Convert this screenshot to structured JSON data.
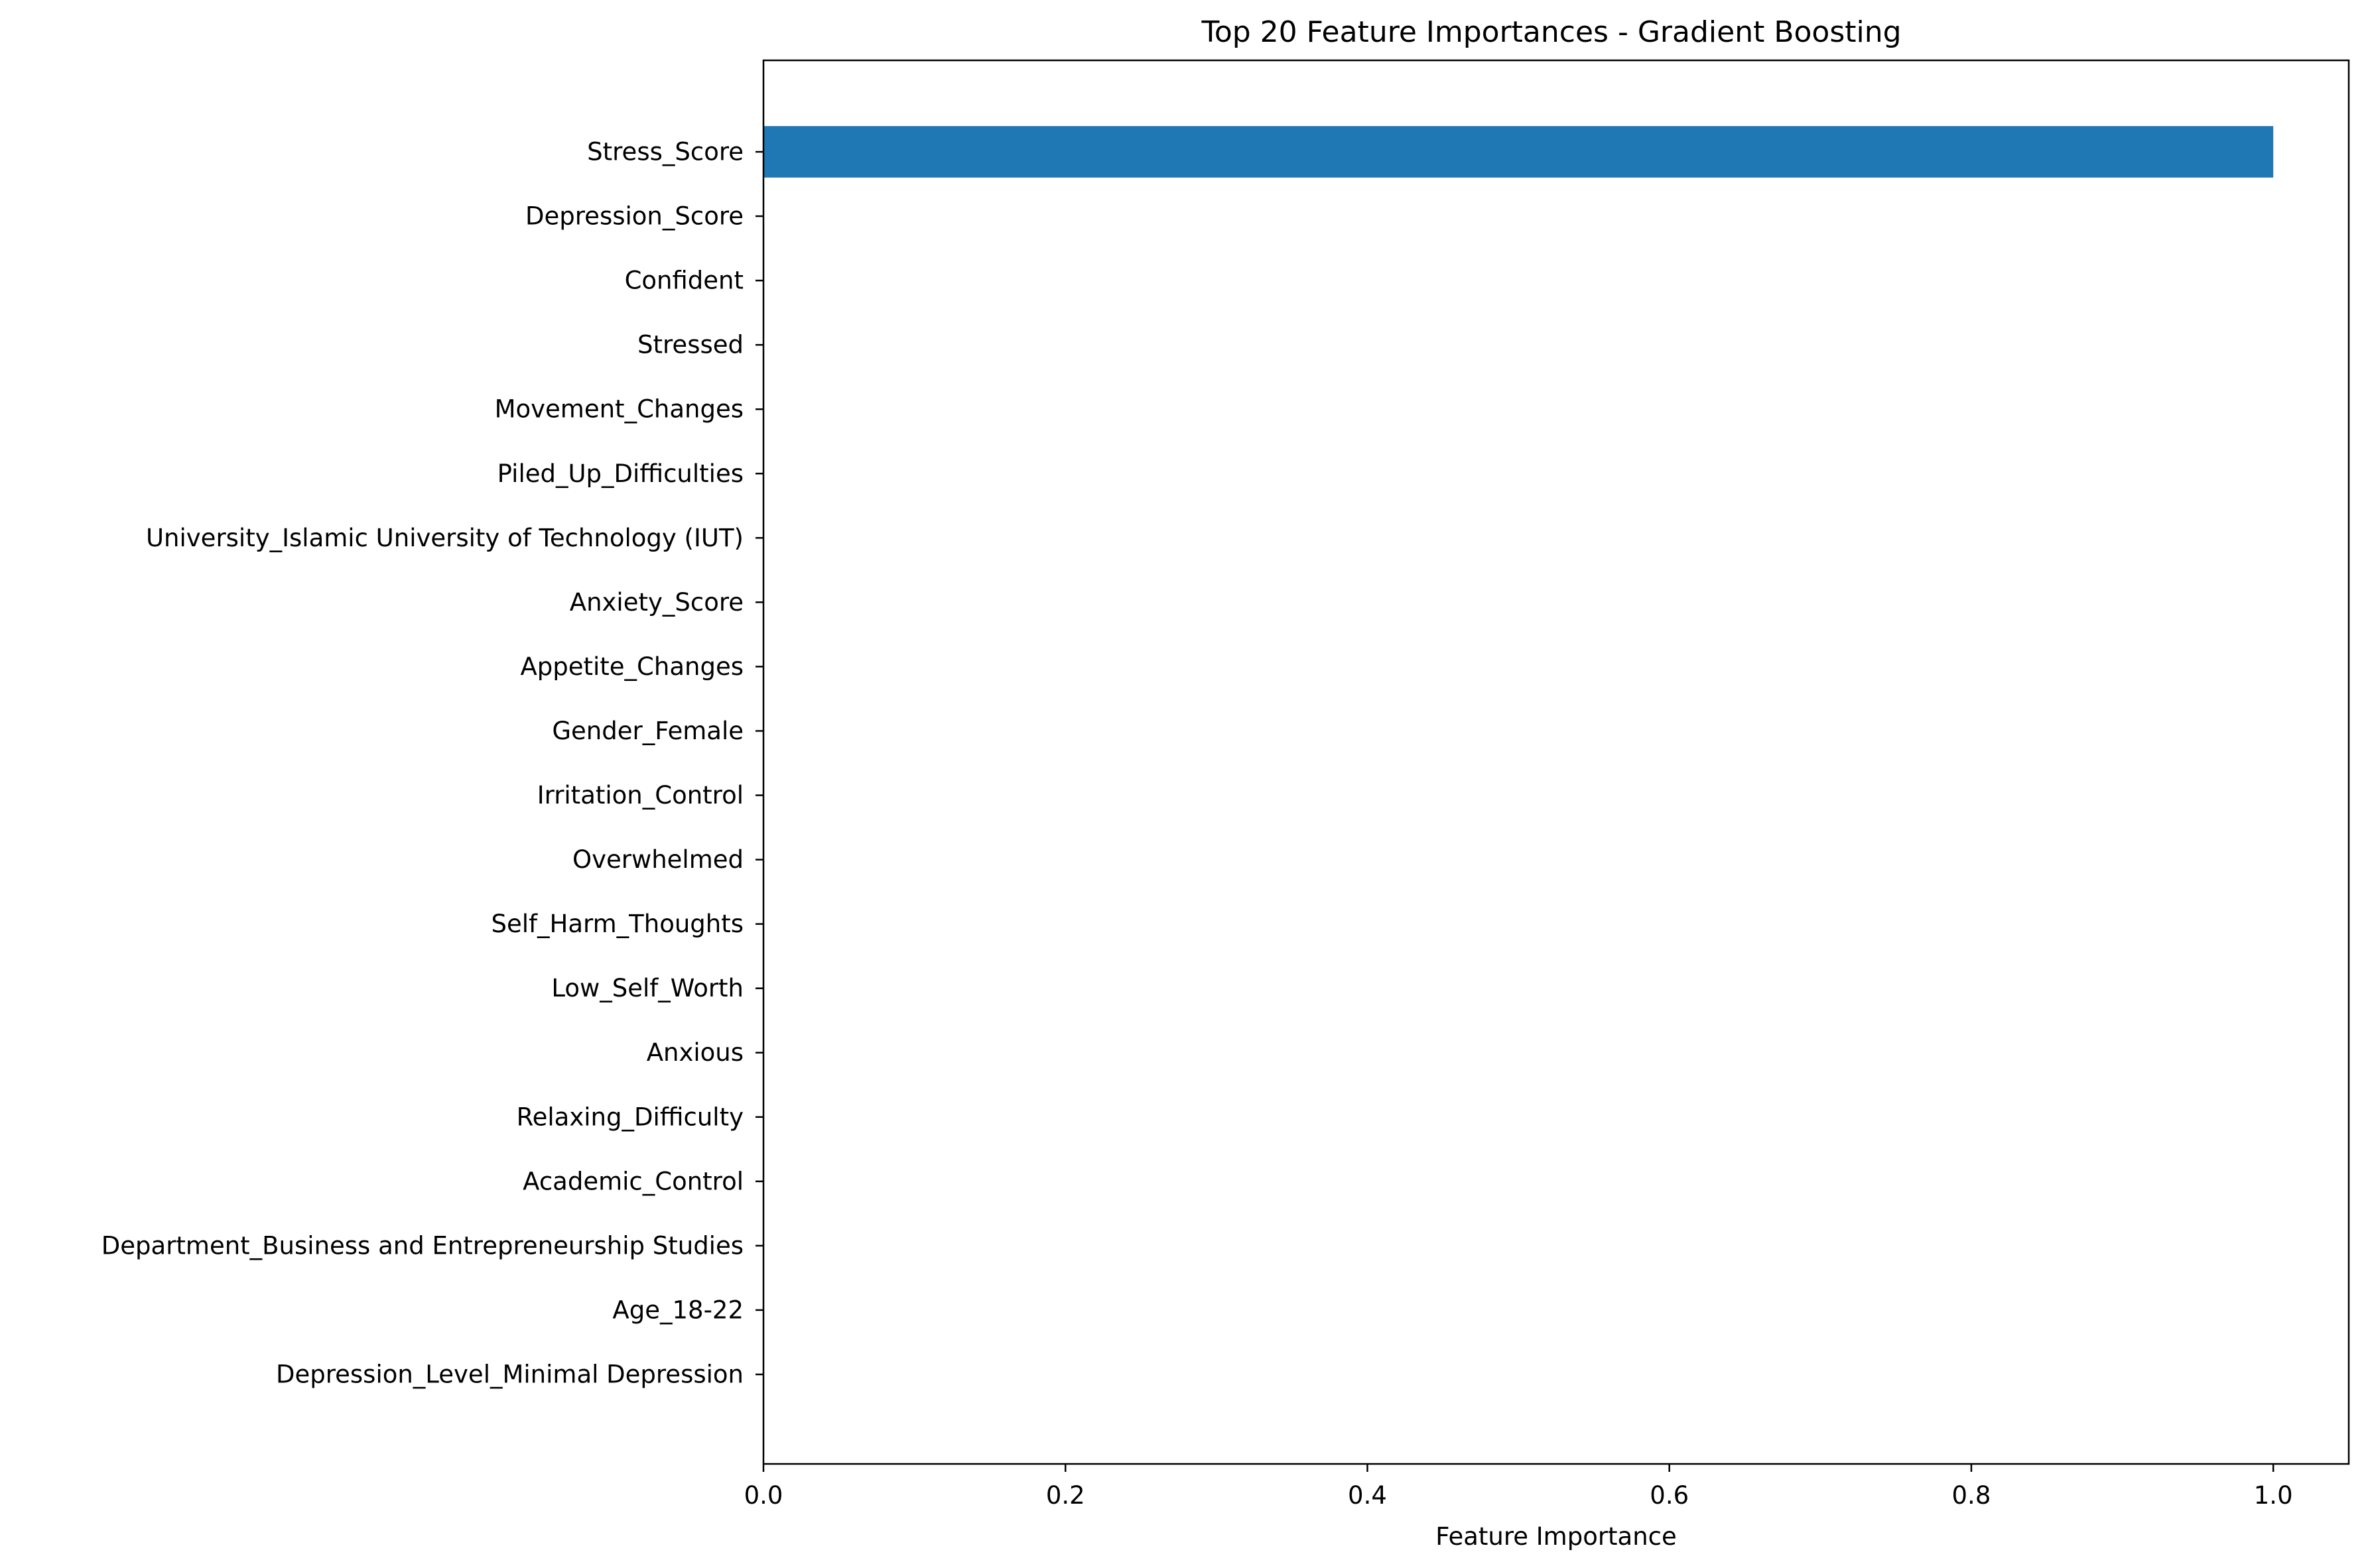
{
  "chart_data": {
    "type": "bar",
    "orientation": "horizontal",
    "title": "Top 20 Feature Importances - Gradient Boosting",
    "xlabel": "Feature Importance",
    "ylabel": "",
    "xlim": [
      0.0,
      1.05
    ],
    "xticks": [
      0.0,
      0.2,
      0.4,
      0.6,
      0.8,
      1.0
    ],
    "xtick_labels": [
      "0.0",
      "0.2",
      "0.4",
      "0.6",
      "0.8",
      "1.0"
    ],
    "grid": false,
    "legend": "none",
    "bar_color": "#1f77b4",
    "categories": [
      "Stress_Score",
      "Depression_Score",
      "Confident",
      "Stressed",
      "Movement_Changes",
      "Piled_Up_Difficulties",
      "University_Islamic University of Technology (IUT)",
      "Anxiety_Score",
      "Appetite_Changes",
      "Gender_Female",
      "Irritation_Control",
      "Overwhelmed",
      "Self_Harm_Thoughts",
      "Low_Self_Worth",
      "Anxious",
      "Relaxing_Difficulty",
      "Academic_Control",
      "Department_Business and Entrepreneurship Studies",
      "Age_18-22",
      "Depression_Level_Minimal Depression"
    ],
    "values": [
      1.0,
      0.0,
      0.0,
      0.0,
      0.0,
      0.0,
      0.0,
      0.0,
      0.0,
      0.0,
      0.0,
      0.0,
      0.0,
      0.0,
      0.0,
      0.0,
      0.0,
      0.0,
      0.0,
      0.0
    ]
  }
}
